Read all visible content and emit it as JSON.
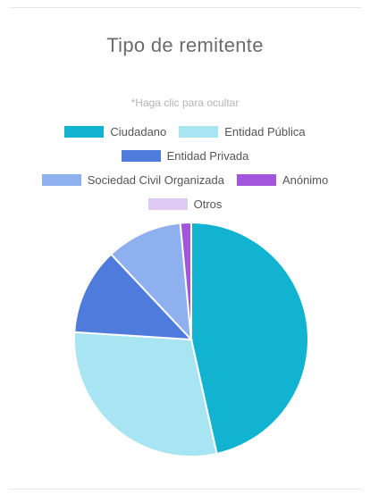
{
  "title": "Tipo de remitente",
  "hint": "*Haga clic para ocultar",
  "legend_rows": [
    [
      0,
      1
    ],
    [
      2
    ],
    [
      3,
      4
    ],
    [
      5
    ]
  ],
  "chart_data": {
    "type": "pie",
    "title": "Tipo de remitente",
    "legend_position": "top-center",
    "start_angle_deg": 0,
    "direction": "clockwise",
    "slices": [
      {
        "label": "Ciudadano",
        "value": 46.5,
        "color": "#12b3d0"
      },
      {
        "label": "Entidad Pública",
        "value": 29.5,
        "color": "#a8e5f2"
      },
      {
        "label": "Entidad Privada",
        "value": 12.0,
        "color": "#4f7bdc"
      },
      {
        "label": "Sociedad Civil Organizada",
        "value": 10.5,
        "color": "#8fb0ee"
      },
      {
        "label": "Anónimo",
        "value": 1.5,
        "color": "#a455dd"
      },
      {
        "label": "Otros",
        "value": 0,
        "color": "#ddc9f2"
      }
    ]
  }
}
